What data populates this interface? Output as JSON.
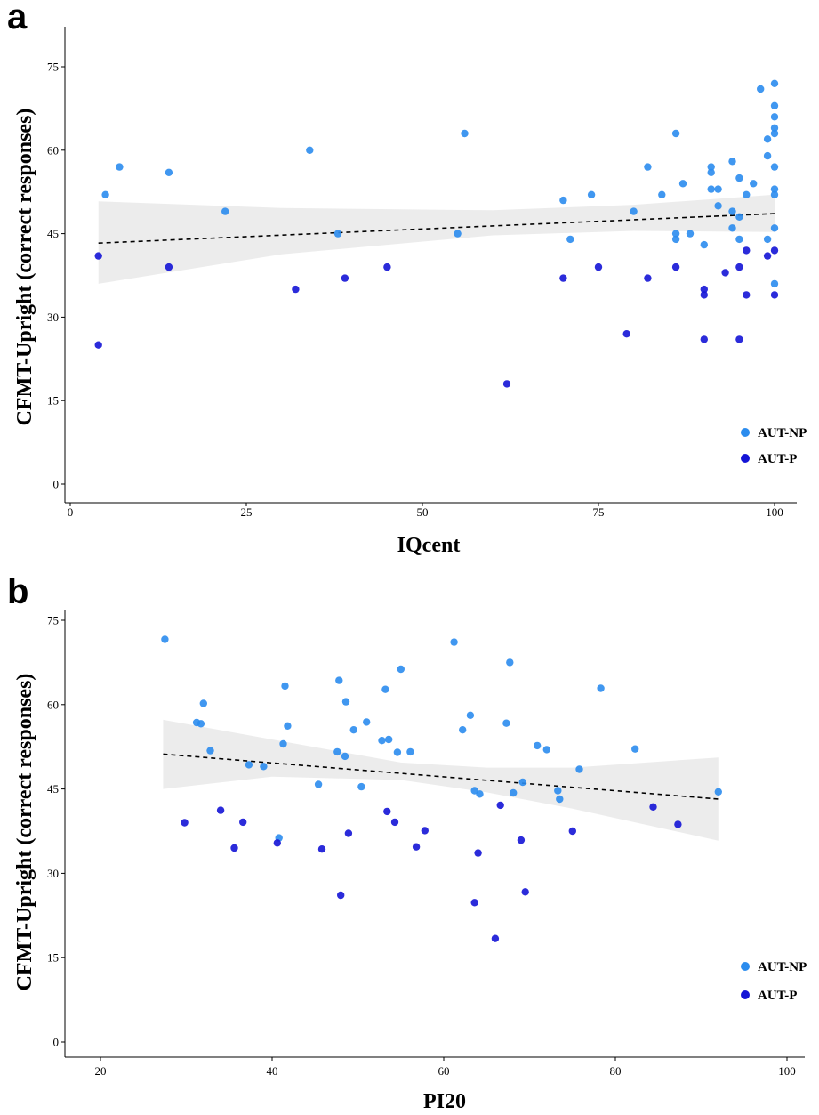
{
  "chart_data": [
    {
      "panel": "a",
      "type": "scatter",
      "xlabel": "IQcent",
      "ylabel": "CFMT-Upright (correct responses)",
      "xlim": [
        0,
        102
      ],
      "ylim": [
        -3,
        82
      ],
      "xticks": [
        0,
        25,
        50,
        75,
        100
      ],
      "yticks": [
        0,
        15,
        30,
        45,
        60,
        75
      ],
      "grid": false,
      "legend_position": "bottom-right",
      "series": [
        {
          "name": "AUT-NP",
          "color": "#2b8cee",
          "points": [
            [
              5,
              52
            ],
            [
              7,
              57
            ],
            [
              14,
              56
            ],
            [
              22,
              49
            ],
            [
              34,
              60
            ],
            [
              38,
              45
            ],
            [
              55,
              45
            ],
            [
              56,
              63
            ],
            [
              70,
              51
            ],
            [
              71,
              44
            ],
            [
              74,
              52
            ],
            [
              80,
              49
            ],
            [
              82,
              57
            ],
            [
              84,
              52
            ],
            [
              86,
              63
            ],
            [
              86,
              45
            ],
            [
              86,
              44
            ],
            [
              87,
              54
            ],
            [
              88,
              45
            ],
            [
              90,
              43
            ],
            [
              91,
              57
            ],
            [
              91,
              56
            ],
            [
              91,
              53
            ],
            [
              92,
              53
            ],
            [
              92,
              50
            ],
            [
              94,
              58
            ],
            [
              94,
              49
            ],
            [
              94,
              46
            ],
            [
              95,
              55
            ],
            [
              95,
              48
            ],
            [
              95,
              44
            ],
            [
              96,
              52
            ],
            [
              97,
              54
            ],
            [
              98,
              71
            ],
            [
              99,
              62
            ],
            [
              99,
              59
            ],
            [
              99,
              44
            ],
            [
              100,
              72
            ],
            [
              100,
              68
            ],
            [
              100,
              66
            ],
            [
              100,
              64
            ],
            [
              100,
              63
            ],
            [
              100,
              57
            ],
            [
              100,
              53
            ],
            [
              100,
              52
            ],
            [
              100,
              46
            ],
            [
              100,
              36
            ]
          ]
        },
        {
          "name": "AUT-P",
          "color": "#1414d6",
          "points": [
            [
              4,
              41
            ],
            [
              4,
              25
            ],
            [
              14,
              39
            ],
            [
              32,
              35
            ],
            [
              39,
              37
            ],
            [
              45,
              39
            ],
            [
              62,
              18
            ],
            [
              70,
              37
            ],
            [
              75,
              39
            ],
            [
              79,
              27
            ],
            [
              82,
              37
            ],
            [
              86,
              39
            ],
            [
              90,
              35
            ],
            [
              90,
              34
            ],
            [
              90,
              26
            ],
            [
              93,
              38
            ],
            [
              95,
              39
            ],
            [
              95,
              26
            ],
            [
              96,
              42
            ],
            [
              96,
              34
            ],
            [
              99,
              41
            ],
            [
              100,
              42
            ],
            [
              100,
              34
            ]
          ]
        }
      ],
      "trend": {
        "x": [
          4,
          100
        ],
        "y": [
          43.3,
          48.6
        ],
        "style": "dashed"
      },
      "ci_band": {
        "x": [
          4,
          30,
          60,
          80,
          100
        ],
        "lower": [
          36,
          41.3,
          44.7,
          45.5,
          45.3
        ],
        "upper": [
          50.8,
          49.6,
          49.2,
          50.2,
          52
        ]
      }
    },
    {
      "panel": "b",
      "type": "scatter",
      "xlabel": "PI20",
      "ylabel": "CFMT-Upright (correct responses)",
      "xlim": [
        16.5,
        102
      ],
      "ylim": [
        -3,
        76
      ],
      "xticks": [
        20,
        40,
        60,
        80,
        100
      ],
      "yticks": [
        0,
        15,
        30,
        45,
        60,
        75
      ],
      "grid": false,
      "legend_position": "bottom-right",
      "series": [
        {
          "name": "AUT-NP",
          "color": "#2b8cee",
          "points": [
            [
              27.5,
              71.6
            ],
            [
              31.2,
              56.8
            ],
            [
              31.7,
              56.6
            ],
            [
              32,
              60.2
            ],
            [
              32.8,
              51.8
            ],
            [
              37.3,
              49.3
            ],
            [
              39,
              49
            ],
            [
              40.8,
              36.3
            ],
            [
              41.3,
              53
            ],
            [
              41.5,
              63.3
            ],
            [
              41.8,
              56.2
            ],
            [
              45.4,
              45.8
            ],
            [
              47.6,
              51.6
            ],
            [
              47.8,
              64.3
            ],
            [
              48.5,
              50.8
            ],
            [
              48.6,
              60.5
            ],
            [
              49.5,
              55.5
            ],
            [
              50.4,
              45.4
            ],
            [
              51,
              56.9
            ],
            [
              52.8,
              53.6
            ],
            [
              53.2,
              62.7
            ],
            [
              53.6,
              53.8
            ],
            [
              54.6,
              51.5
            ],
            [
              55,
              66.3
            ],
            [
              56.1,
              51.6
            ],
            [
              61.2,
              71.1
            ],
            [
              62.2,
              55.5
            ],
            [
              63.1,
              58.1
            ],
            [
              63.6,
              44.7
            ],
            [
              64.2,
              44.1
            ],
            [
              67.3,
              56.7
            ],
            [
              67.7,
              67.5
            ],
            [
              68.1,
              44.3
            ],
            [
              69.2,
              46.2
            ],
            [
              70.9,
              52.7
            ],
            [
              72,
              52
            ],
            [
              73.3,
              44.7
            ],
            [
              73.5,
              43.2
            ],
            [
              75.8,
              48.5
            ],
            [
              78.3,
              62.9
            ],
            [
              82.3,
              52.1
            ],
            [
              92,
              44.5
            ]
          ]
        },
        {
          "name": "AUT-P",
          "color": "#1414d6",
          "points": [
            [
              29.8,
              39
            ],
            [
              34,
              41.2
            ],
            [
              35.6,
              34.5
            ],
            [
              36.6,
              39.1
            ],
            [
              40.6,
              35.4
            ],
            [
              45.8,
              34.3
            ],
            [
              48,
              26.1
            ],
            [
              48.9,
              37.1
            ],
            [
              53.4,
              41
            ],
            [
              54.3,
              39.1
            ],
            [
              56.8,
              34.7
            ],
            [
              57.8,
              37.6
            ],
            [
              63.6,
              24.8
            ],
            [
              64,
              33.6
            ],
            [
              66,
              18.4
            ],
            [
              66.6,
              42.1
            ],
            [
              69,
              35.9
            ],
            [
              69.5,
              26.7
            ],
            [
              75,
              37.5
            ],
            [
              84.4,
              41.8
            ],
            [
              87.3,
              38.7
            ]
          ]
        }
      ],
      "trend": {
        "x": [
          27.3,
          92
        ],
        "y": [
          51.2,
          43.2
        ],
        "style": "dashed"
      },
      "ci_band": {
        "x": [
          27.3,
          40,
          55,
          65,
          75,
          92
        ],
        "lower": [
          45,
          47.2,
          46.6,
          44.4,
          41.5,
          35.8
        ],
        "upper": [
          57.3,
          53.8,
          49.7,
          48.8,
          48.8,
          50.6
        ]
      }
    }
  ]
}
